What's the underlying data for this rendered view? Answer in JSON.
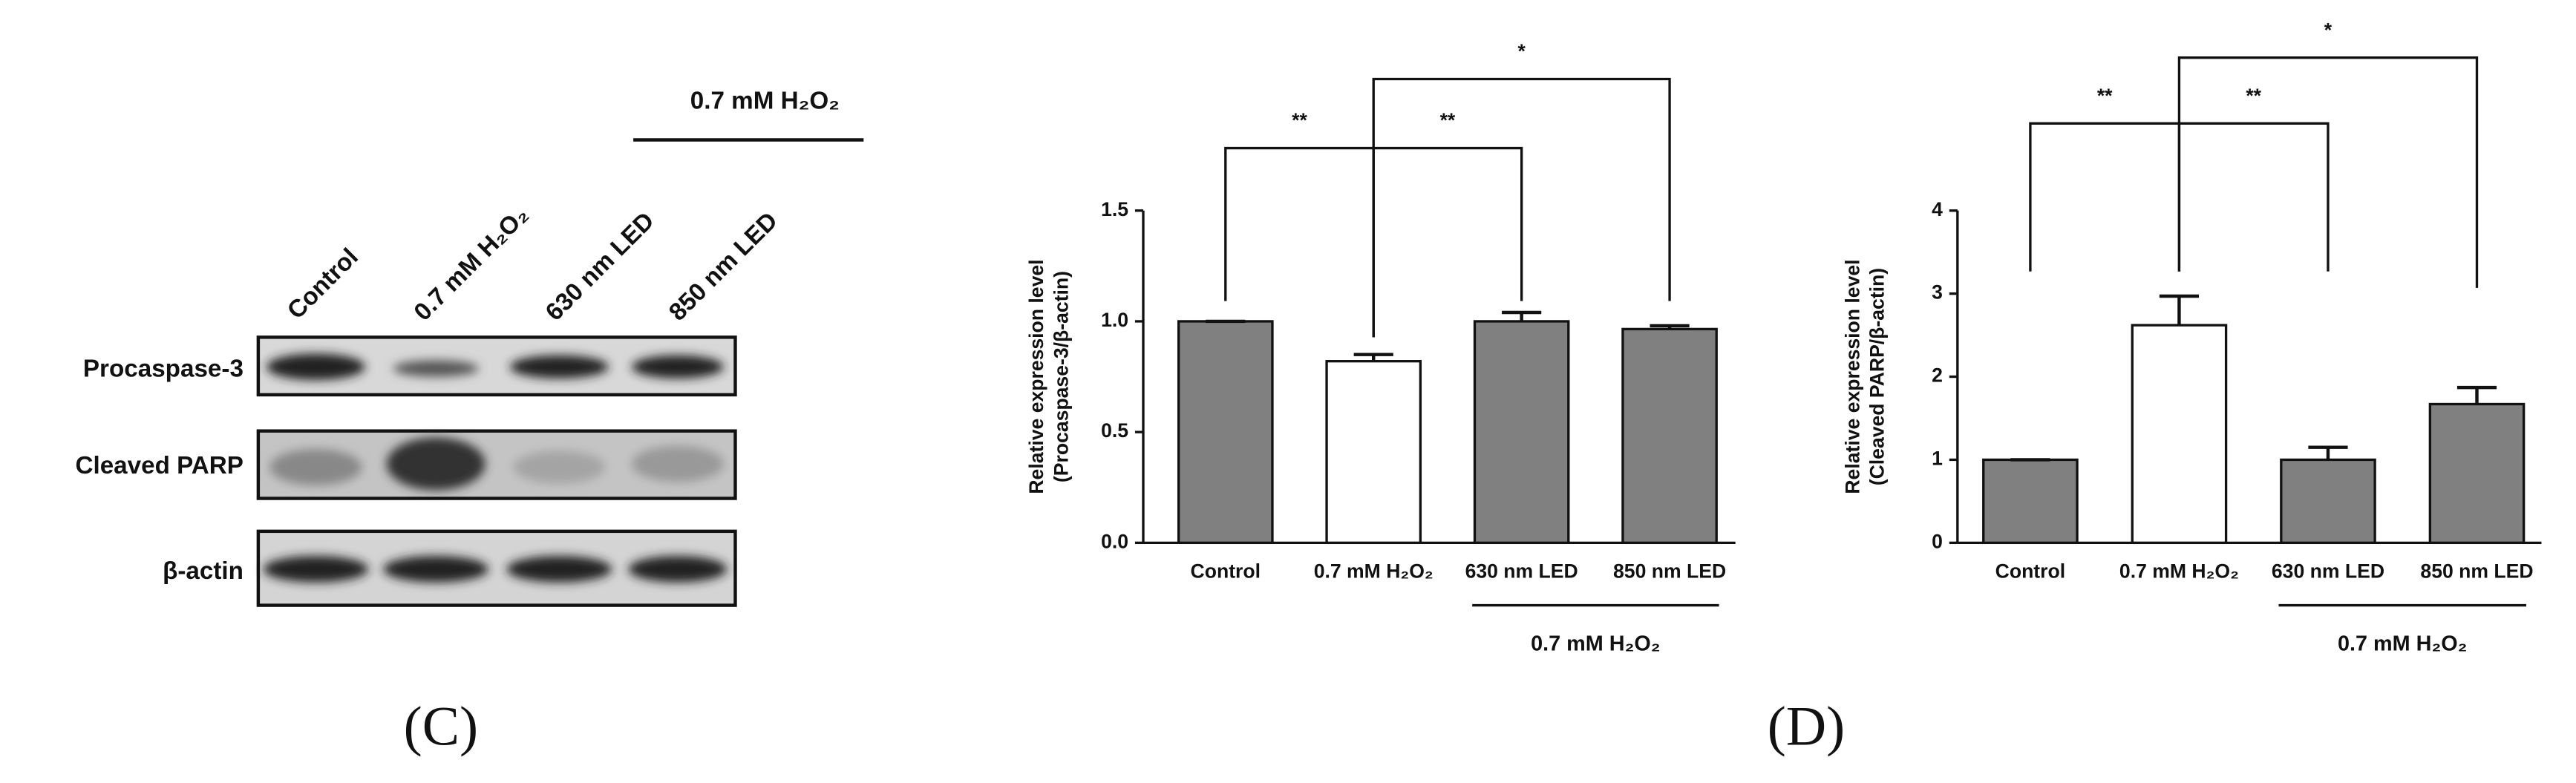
{
  "panel_labels": [
    "(C)",
    "(D)"
  ],
  "blot": {
    "treatment": "0.7 mM H₂O₂",
    "lanes": [
      "Control",
      "0.7 mM H₂O₂",
      "630 nm LED",
      "850 nm LED"
    ],
    "rows": [
      "Procaspase-3",
      "Cleaved PARP",
      "β-actin"
    ]
  },
  "chart_data": [
    {
      "type": "bar",
      "ylabel": [
        "Relative expression level",
        "(Procaspase-3/β-actin)"
      ],
      "categories": [
        "Control",
        "0.7 mM H₂O₂",
        "630 nm LED",
        "850 nm LED"
      ],
      "values": [
        1.0,
        0.82,
        1.0,
        0.965
      ],
      "errors": [
        0,
        0.03,
        0.04,
        0.015
      ],
      "colors": [
        "#808080",
        "#ffffff",
        "#808080",
        "#808080"
      ],
      "group_label": "0.7 mM H₂O₂",
      "annotations": [
        "**",
        "**",
        "*"
      ],
      "ylim": [
        0,
        1.5
      ],
      "yticks": [
        {
          "value": 0,
          "label": "0.0"
        },
        {
          "value": 0.5,
          "label": "0.5"
        },
        {
          "value": 1,
          "label": "1.0"
        },
        {
          "value": 1.5,
          "label": "1.5"
        }
      ]
    },
    {
      "type": "bar",
      "ylabel": [
        "Relative expression level",
        "(Cleaved PARP/β-actin)"
      ],
      "categories": [
        "Control",
        "0.7 mM H₂O₂",
        "630 nm LED",
        "850 nm LED"
      ],
      "values": [
        1.0,
        2.62,
        1.0,
        1.67
      ],
      "errors": [
        0,
        0.35,
        0.15,
        0.2
      ],
      "colors": [
        "#808080",
        "#ffffff",
        "#808080",
        "#808080"
      ],
      "group_label": "0.7 mM H₂O₂",
      "annotations": [
        "**",
        "**",
        "*"
      ],
      "ylim": [
        0,
        4
      ],
      "yticks": [
        0,
        1,
        2,
        3,
        4
      ]
    }
  ]
}
